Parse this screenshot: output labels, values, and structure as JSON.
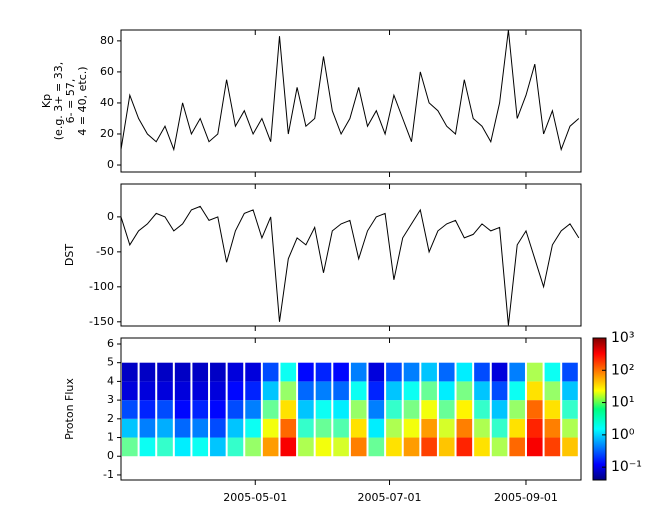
{
  "chart_data": [
    {
      "type": "line",
      "ylabel": [
        "Kp",
        "(e.g. 3+ = 33,",
        "6- = 57,",
        "4 = 40, etc.)"
      ],
      "color": "#000000",
      "x": [
        "2005-03-01",
        "2005-03-05",
        "2005-03-09",
        "2005-03-13",
        "2005-03-17",
        "2005-03-21",
        "2005-03-25",
        "2005-03-29",
        "2005-04-02",
        "2005-04-06",
        "2005-04-10",
        "2005-04-14",
        "2005-04-18",
        "2005-04-22",
        "2005-04-26",
        "2005-04-30",
        "2005-05-04",
        "2005-05-08",
        "2005-05-12",
        "2005-05-16",
        "2005-05-20",
        "2005-05-24",
        "2005-05-28",
        "2005-06-01",
        "2005-06-05",
        "2005-06-09",
        "2005-06-13",
        "2005-06-17",
        "2005-06-21",
        "2005-06-25",
        "2005-06-29",
        "2005-07-03",
        "2005-07-07",
        "2005-07-11",
        "2005-07-15",
        "2005-07-19",
        "2005-07-23",
        "2005-07-27",
        "2005-07-31",
        "2005-08-04",
        "2005-08-08",
        "2005-08-12",
        "2005-08-16",
        "2005-08-20",
        "2005-08-24",
        "2005-08-28",
        "2005-09-01",
        "2005-09-05",
        "2005-09-09",
        "2005-09-13",
        "2005-09-17",
        "2005-09-21",
        "2005-09-25"
      ],
      "values": [
        10,
        45,
        30,
        20,
        15,
        25,
        10,
        40,
        20,
        30,
        15,
        20,
        55,
        25,
        35,
        20,
        30,
        15,
        83,
        20,
        50,
        25,
        30,
        70,
        35,
        20,
        30,
        50,
        25,
        35,
        20,
        45,
        30,
        15,
        60,
        40,
        35,
        25,
        20,
        55,
        30,
        25,
        15,
        40,
        87,
        30,
        45,
        65,
        20,
        35,
        10,
        25,
        30
      ],
      "xlim": [
        "2005-03-01",
        "2005-09-26"
      ],
      "xticks": [
        "2005-05-01",
        "2005-07-01",
        "2005-09-01"
      ],
      "ylim": [
        -4.5,
        87
      ],
      "yticks": [
        0,
        20,
        40,
        60,
        80
      ]
    },
    {
      "type": "line",
      "ylabel": [
        "DST"
      ],
      "color": "#000000",
      "x": [
        "2005-03-01",
        "2005-03-05",
        "2005-03-09",
        "2005-03-13",
        "2005-03-17",
        "2005-03-21",
        "2005-03-25",
        "2005-03-29",
        "2005-04-02",
        "2005-04-06",
        "2005-04-10",
        "2005-04-14",
        "2005-04-18",
        "2005-04-22",
        "2005-04-26",
        "2005-04-30",
        "2005-05-04",
        "2005-05-08",
        "2005-05-12",
        "2005-05-16",
        "2005-05-20",
        "2005-05-24",
        "2005-05-28",
        "2005-06-01",
        "2005-06-05",
        "2005-06-09",
        "2005-06-13",
        "2005-06-17",
        "2005-06-21",
        "2005-06-25",
        "2005-06-29",
        "2005-07-03",
        "2005-07-07",
        "2005-07-11",
        "2005-07-15",
        "2005-07-19",
        "2005-07-23",
        "2005-07-27",
        "2005-07-31",
        "2005-08-04",
        "2005-08-08",
        "2005-08-12",
        "2005-08-16",
        "2005-08-20",
        "2005-08-24",
        "2005-08-28",
        "2005-09-01",
        "2005-09-05",
        "2005-09-09",
        "2005-09-13",
        "2005-09-17",
        "2005-09-21",
        "2005-09-25"
      ],
      "values": [
        0,
        -40,
        -20,
        -10,
        5,
        0,
        -20,
        -10,
        10,
        15,
        -5,
        0,
        -65,
        -20,
        5,
        10,
        -30,
        0,
        -150,
        -60,
        -30,
        -40,
        -15,
        -80,
        -20,
        -10,
        -5,
        -60,
        -20,
        0,
        5,
        -90,
        -30,
        -10,
        10,
        -50,
        -20,
        -10,
        -5,
        -30,
        -25,
        -10,
        -20,
        -15,
        -155,
        -40,
        -20,
        -60,
        -100,
        -40,
        -20,
        -10,
        -30
      ],
      "xlim": [
        "2005-03-01",
        "2005-09-26"
      ],
      "xticks": [
        "2005-05-01",
        "2005-07-01",
        "2005-09-01"
      ],
      "ylim": [
        -156,
        47
      ],
      "yticks": [
        0,
        -50,
        -100,
        -150
      ]
    },
    {
      "type": "heatmap",
      "ylabel": [
        "Proton Flux"
      ],
      "x": [
        "2005-03-01",
        "2005-03-09",
        "2005-03-17",
        "2005-03-25",
        "2005-04-02",
        "2005-04-10",
        "2005-04-18",
        "2005-04-26",
        "2005-05-04",
        "2005-05-12",
        "2005-05-20",
        "2005-05-28",
        "2005-06-05",
        "2005-06-13",
        "2005-06-21",
        "2005-06-29",
        "2005-07-07",
        "2005-07-15",
        "2005-07-23",
        "2005-07-31",
        "2005-08-08",
        "2005-08-16",
        "2005-08-24",
        "2005-09-01",
        "2005-09-09",
        "2005-09-17",
        "2005-09-25"
      ],
      "bins": [
        0,
        1,
        2,
        3,
        4,
        5
      ],
      "values": [
        [
          5,
          1,
          0.3,
          0.1,
          0.08
        ],
        [
          2,
          0.5,
          0.2,
          0.1,
          0.08
        ],
        [
          3,
          0.8,
          0.3,
          0.1,
          0.08
        ],
        [
          1.5,
          0.4,
          0.15,
          0.1,
          0.08
        ],
        [
          2,
          0.5,
          0.2,
          0.1,
          0.08
        ],
        [
          1,
          0.3,
          0.15,
          0.1,
          0.08
        ],
        [
          3,
          1,
          0.3,
          0.15,
          0.1
        ],
        [
          8,
          2,
          0.5,
          0.2,
          0.1
        ],
        [
          60,
          20,
          5,
          1,
          0.3
        ],
        [
          300,
          100,
          30,
          8,
          2
        ],
        [
          10,
          3,
          1,
          0.4,
          0.15
        ],
        [
          20,
          5,
          2,
          0.5,
          0.2
        ],
        [
          15,
          4,
          1.5,
          0.4,
          0.15
        ],
        [
          80,
          30,
          8,
          2,
          0.5
        ],
        [
          5,
          1.5,
          0.5,
          0.2,
          0.1
        ],
        [
          30,
          10,
          3,
          1,
          0.3
        ],
        [
          60,
          20,
          6,
          2,
          0.5
        ],
        [
          150,
          60,
          20,
          5,
          1
        ],
        [
          40,
          15,
          5,
          1.5,
          0.4
        ],
        [
          200,
          80,
          25,
          6,
          1.5
        ],
        [
          30,
          10,
          3,
          1,
          0.3
        ],
        [
          10,
          3,
          1,
          0.3,
          0.1
        ],
        [
          100,
          30,
          8,
          2,
          0.5
        ],
        [
          300,
          200,
          100,
          30,
          10
        ],
        [
          150,
          80,
          30,
          8,
          2
        ],
        [
          40,
          10,
          3,
          1,
          0.3
        ]
      ],
      "xlim": [
        "2005-03-01",
        "2005-09-26"
      ],
      "xticks": [
        "2005-05-01",
        "2005-07-01",
        "2005-09-01"
      ],
      "ylim": [
        -1.27,
        6.32
      ],
      "yticks": [
        -1,
        0,
        1,
        2,
        3,
        4,
        5,
        6
      ],
      "colormap": "jet",
      "zscale": "log",
      "zlim": [
        0.04,
        1000
      ],
      "zticks": [
        {
          "value": 0.1,
          "label": "10⁻¹"
        },
        {
          "value": 1,
          "label": "10⁰"
        },
        {
          "value": 10,
          "label": "10¹"
        },
        {
          "value": 100,
          "label": "10²"
        },
        {
          "value": 1000,
          "label": "10³"
        }
      ]
    }
  ]
}
